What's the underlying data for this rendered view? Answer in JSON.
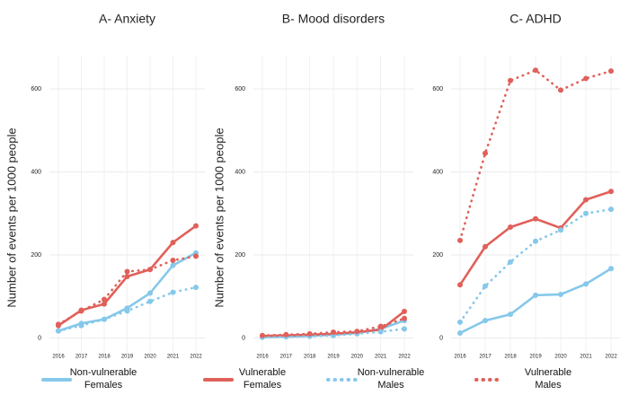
{
  "chart_data": [
    {
      "type": "line",
      "title": "A- Anxiety",
      "ylabel": "Number of events per 1000 people",
      "categories": [
        "2016",
        "2017",
        "2018",
        "2019",
        "2020",
        "2021",
        "2022"
      ],
      "ylim": [
        -40,
        680
      ],
      "yticks": [
        0,
        200,
        400,
        600
      ],
      "grid": true,
      "series": [
        {
          "name": "Non-vulnerable Females",
          "color": "#85c8ea",
          "style": "solid",
          "values": [
            17,
            35,
            45,
            72,
            108,
            175,
            205
          ]
        },
        {
          "name": "Vulnerable Females",
          "color": "#e0605a",
          "style": "solid",
          "values": [
            30,
            67,
            82,
            148,
            165,
            230,
            270
          ]
        },
        {
          "name": "Non-vulnerable Males",
          "color": "#85c8ea",
          "style": "dotted",
          "values": [
            17,
            30,
            45,
            65,
            88,
            110,
            122
          ]
        },
        {
          "name": "Vulnerable Males",
          "color": "#e0605a",
          "style": "dotted",
          "values": [
            33,
            65,
            93,
            160,
            165,
            187,
            197
          ]
        }
      ]
    },
    {
      "type": "line",
      "title": "B- Mood disorders",
      "ylabel": "Number of events per 1000 people",
      "categories": [
        "2016",
        "2017",
        "2018",
        "2019",
        "2020",
        "2021",
        "2022"
      ],
      "ylim": [
        -40,
        680
      ],
      "yticks": [
        0,
        200,
        400,
        600
      ],
      "grid": true,
      "series": [
        {
          "name": "Non-vulnerable Females",
          "color": "#85c8ea",
          "style": "solid",
          "values": [
            2,
            3,
            5,
            8,
            12,
            22,
            42
          ]
        },
        {
          "name": "Vulnerable Females",
          "color": "#e0605a",
          "style": "solid",
          "values": [
            5,
            6,
            8,
            10,
            14,
            20,
            64
          ]
        },
        {
          "name": "Non-vulnerable Males",
          "color": "#85c8ea",
          "style": "dotted",
          "values": [
            2,
            3,
            4,
            6,
            10,
            15,
            22
          ]
        },
        {
          "name": "Vulnerable Males",
          "color": "#e0605a",
          "style": "dotted",
          "values": [
            6,
            8,
            10,
            14,
            16,
            28,
            47
          ]
        }
      ]
    },
    {
      "type": "line",
      "title": "C- ADHD",
      "categories": [
        "2016",
        "2017",
        "2018",
        "2019",
        "2020",
        "2021",
        "2022"
      ],
      "ylim": [
        -40,
        680
      ],
      "yticks": [
        0,
        200,
        400,
        600
      ],
      "grid": true,
      "series": [
        {
          "name": "Non-vulnerable Females",
          "color": "#85c8ea",
          "style": "solid",
          "values": [
            12,
            42,
            57,
            103,
            105,
            130,
            167
          ]
        },
        {
          "name": "Vulnerable Females",
          "color": "#e0605a",
          "style": "solid",
          "values": [
            128,
            220,
            267,
            287,
            265,
            333,
            353
          ]
        },
        {
          "name": "Non-vulnerable Males",
          "color": "#85c8ea",
          "style": "dotted",
          "values": [
            38,
            125,
            183,
            233,
            260,
            300,
            310
          ]
        },
        {
          "name": "Vulnerable Males",
          "color": "#e0605a",
          "style": "dotted",
          "values": [
            235,
            445,
            620,
            645,
            597,
            625,
            643
          ]
        }
      ]
    }
  ]
}
